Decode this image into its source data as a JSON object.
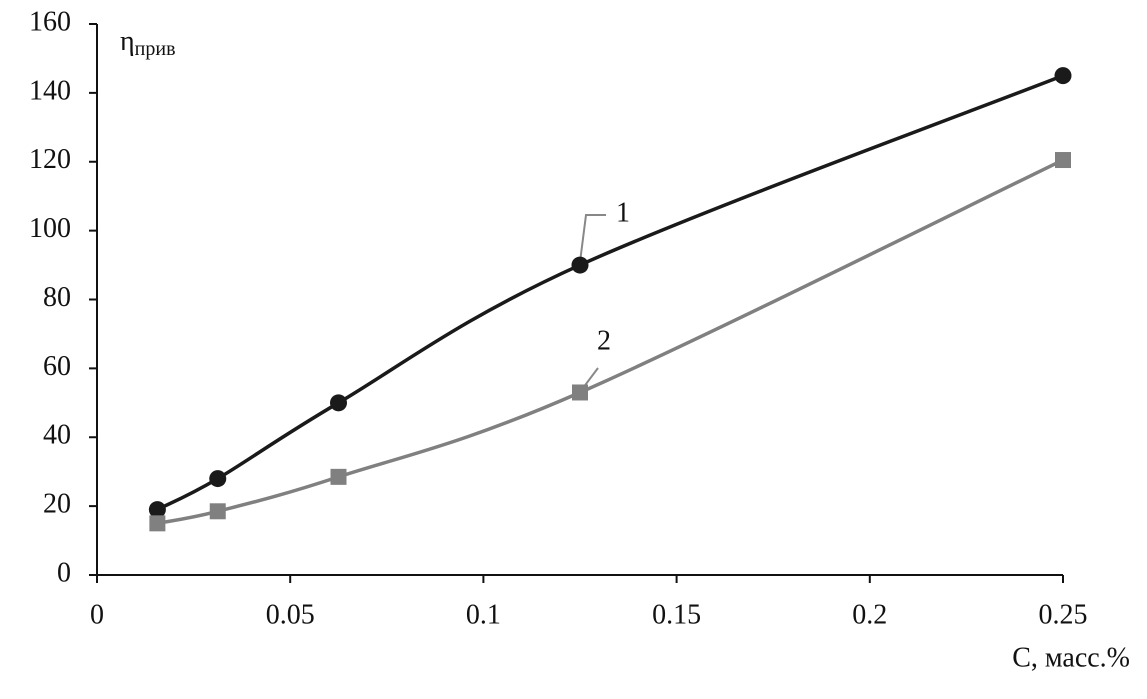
{
  "chart_data": {
    "type": "line",
    "y_label": {
      "symbol": "η",
      "subscript": "прив"
    },
    "x_label": "C, масс.%",
    "x": [
      0.015625,
      0.03125,
      0.0625,
      0.125,
      0.25
    ],
    "series": [
      {
        "name": "1",
        "color": "#1a1a1a",
        "marker": "circle",
        "values": [
          19,
          28,
          50,
          90,
          145
        ]
      },
      {
        "name": "2",
        "color": "#808080",
        "marker": "square",
        "values": [
          15,
          18.5,
          28.5,
          53,
          120.5
        ]
      }
    ],
    "xlim": [
      0,
      0.25
    ],
    "xticks": [
      0,
      0.05,
      0.1,
      0.15,
      0.2,
      0.25
    ],
    "ylim": [
      0,
      160
    ],
    "yticks": [
      0,
      20,
      40,
      60,
      80,
      100,
      120,
      140,
      160
    ],
    "grid": false
  }
}
